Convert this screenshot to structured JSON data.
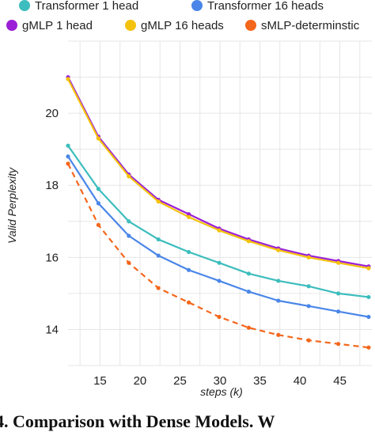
{
  "caption": "4. Comparison with Dense Models. W",
  "chart_data": {
    "type": "line",
    "xlabel": "steps (k)",
    "ylabel": "Valid Perplexity",
    "xlim": [
      11,
      49
    ],
    "ylim": [
      13,
      22
    ],
    "xticks": [
      15,
      20,
      25,
      30,
      35,
      40,
      45
    ],
    "yticks": [
      14,
      16,
      18,
      20
    ],
    "grid": true,
    "legend_position": "top",
    "x": [
      11,
      14.8,
      18.6,
      22.3,
      26.1,
      29.9,
      33.6,
      37.3,
      41.1,
      44.8,
      48.6
    ],
    "series": [
      {
        "name": "Transformer 1 head",
        "color": "#3dbdbd",
        "dashed": false,
        "values": [
          19.1,
          17.9,
          17.0,
          16.5,
          16.15,
          15.85,
          15.55,
          15.35,
          15.2,
          15.0,
          14.9
        ]
      },
      {
        "name": "Transformer 16 heads",
        "color": "#4a86e8",
        "dashed": false,
        "values": [
          18.8,
          17.5,
          16.6,
          16.05,
          15.65,
          15.35,
          15.05,
          14.8,
          14.65,
          14.5,
          14.35
        ]
      },
      {
        "name": "gMLP 1 head",
        "color": "#9b1fd6",
        "dashed": false,
        "values": [
          21.0,
          19.35,
          18.3,
          17.6,
          17.2,
          16.8,
          16.5,
          16.25,
          16.05,
          15.9,
          15.75
        ]
      },
      {
        "name": "gMLP 16 heads",
        "color": "#f4c20d",
        "dashed": false,
        "values": [
          20.95,
          19.3,
          18.25,
          17.55,
          17.12,
          16.75,
          16.45,
          16.2,
          16.0,
          15.85,
          15.7
        ]
      },
      {
        "name": "sMLP-determinstic",
        "color": "#f4661b",
        "dashed": true,
        "values": [
          18.6,
          16.9,
          15.85,
          15.15,
          14.75,
          14.35,
          14.05,
          13.85,
          13.7,
          13.6,
          13.5
        ]
      }
    ]
  }
}
